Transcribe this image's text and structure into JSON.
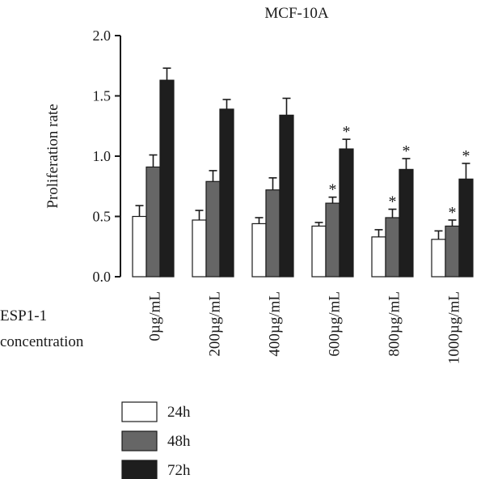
{
  "chart_data": {
    "type": "bar",
    "title": "MCF-10A",
    "ylabel": "Proliferation rate",
    "xlabel": "ESP1-1\nconcentration",
    "xlabel_lines": [
      "ESP1-1",
      "concentration"
    ],
    "categories": [
      "0µg/mL",
      "200µg/mL",
      "400µg/mL",
      "600µg/mL",
      "800µg/mL",
      "1000µg/mL"
    ],
    "ylim": [
      0.0,
      2.0
    ],
    "yticks": [
      "0.0",
      "0.5",
      "1.0",
      "1.5",
      "2.0"
    ],
    "grid": false,
    "legend_position": "bottom-left",
    "series": [
      {
        "name": "24h",
        "color": "#ffffff",
        "values": [
          0.5,
          0.47,
          0.44,
          0.42,
          0.33,
          0.31
        ],
        "errors": [
          0.09,
          0.08,
          0.05,
          0.03,
          0.06,
          0.07
        ],
        "significant": [
          false,
          false,
          false,
          false,
          false,
          false
        ]
      },
      {
        "name": "48h",
        "color": "#666666",
        "values": [
          0.91,
          0.79,
          0.72,
          0.61,
          0.49,
          0.42
        ],
        "errors": [
          0.1,
          0.09,
          0.1,
          0.05,
          0.07,
          0.05
        ],
        "significant": [
          false,
          false,
          false,
          true,
          true,
          true
        ]
      },
      {
        "name": "72h",
        "color": "#1e1e1e",
        "values": [
          1.63,
          1.39,
          1.34,
          1.06,
          0.89,
          0.81
        ],
        "errors": [
          0.1,
          0.08,
          0.14,
          0.08,
          0.09,
          0.13
        ],
        "significant": [
          false,
          false,
          false,
          true,
          true,
          true
        ]
      }
    ],
    "significance_marker": "*"
  }
}
